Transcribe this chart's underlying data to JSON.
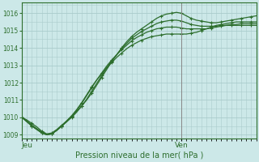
{
  "xlabel": "Pression niveau de la mer( hPa )",
  "bg_color": "#cce8e8",
  "grid_color": "#aacccc",
  "line_color": "#2d6e2d",
  "vline_color": "#888888",
  "ylim": [
    1008.8,
    1016.6
  ],
  "xlim": [
    0,
    47
  ],
  "yticks": [
    1009,
    1010,
    1011,
    1012,
    1013,
    1014,
    1015,
    1016
  ],
  "xtick_labels": [
    "Jeu",
    "Ven"
  ],
  "xtick_pos": [
    1,
    32
  ],
  "vline_x": 32,
  "figsize": [
    3.2,
    2.0
  ],
  "dpi": 100,
  "series": [
    [
      1010.0,
      1009.85,
      1009.65,
      1009.45,
      1009.2,
      1009.05,
      1009.1,
      1009.3,
      1009.55,
      1009.8,
      1010.05,
      1010.35,
      1010.65,
      1011.0,
      1011.4,
      1011.85,
      1012.3,
      1012.75,
      1013.2,
      1013.6,
      1014.0,
      1014.35,
      1014.65,
      1014.9,
      1015.1,
      1015.3,
      1015.5,
      1015.7,
      1015.85,
      1015.95,
      1016.0,
      1016.05,
      1016.0,
      1015.85,
      1015.7,
      1015.6,
      1015.55,
      1015.5,
      1015.45,
      1015.45,
      1015.5,
      1015.55,
      1015.6,
      1015.65,
      1015.7,
      1015.75,
      1015.8,
      1015.85
    ],
    [
      1010.0,
      1009.8,
      1009.55,
      1009.35,
      1009.15,
      1009.0,
      1009.05,
      1009.25,
      1009.5,
      1009.75,
      1010.0,
      1010.3,
      1010.65,
      1011.05,
      1011.5,
      1011.95,
      1012.4,
      1012.85,
      1013.25,
      1013.6,
      1013.95,
      1014.25,
      1014.55,
      1014.75,
      1014.95,
      1015.1,
      1015.25,
      1015.4,
      1015.5,
      1015.55,
      1015.6,
      1015.6,
      1015.55,
      1015.45,
      1015.35,
      1015.3,
      1015.25,
      1015.25,
      1015.25,
      1015.25,
      1015.3,
      1015.3,
      1015.35,
      1015.35,
      1015.4,
      1015.4,
      1015.4,
      1015.4
    ],
    [
      1010.0,
      1009.75,
      1009.5,
      1009.3,
      1009.1,
      1009.0,
      1009.05,
      1009.25,
      1009.5,
      1009.75,
      1010.05,
      1010.4,
      1010.8,
      1011.25,
      1011.7,
      1012.15,
      1012.55,
      1012.95,
      1013.3,
      1013.6,
      1013.9,
      1014.15,
      1014.4,
      1014.6,
      1014.75,
      1014.9,
      1015.0,
      1015.1,
      1015.15,
      1015.2,
      1015.2,
      1015.2,
      1015.15,
      1015.1,
      1015.1,
      1015.1,
      1015.1,
      1015.1,
      1015.15,
      1015.2,
      1015.25,
      1015.3,
      1015.3,
      1015.3,
      1015.3,
      1015.3,
      1015.3,
      1015.3
    ],
    [
      1010.0,
      1009.75,
      1009.5,
      1009.3,
      1009.1,
      1009.0,
      1009.05,
      1009.25,
      1009.5,
      1009.8,
      1010.1,
      1010.45,
      1010.85,
      1011.3,
      1011.75,
      1012.15,
      1012.5,
      1012.85,
      1013.15,
      1013.45,
      1013.7,
      1013.95,
      1014.15,
      1014.3,
      1014.45,
      1014.55,
      1014.65,
      1014.7,
      1014.75,
      1014.8,
      1014.8,
      1014.8,
      1014.8,
      1014.8,
      1014.85,
      1014.9,
      1015.0,
      1015.1,
      1015.2,
      1015.3,
      1015.35,
      1015.4,
      1015.45,
      1015.5,
      1015.5,
      1015.5,
      1015.5,
      1015.5
    ]
  ]
}
